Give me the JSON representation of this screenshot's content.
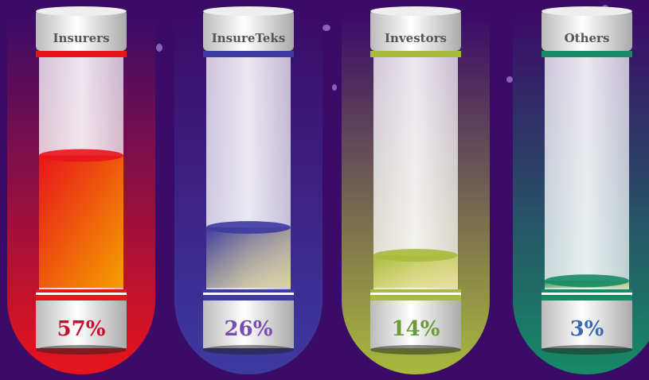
{
  "chart_data": {
    "type": "bar",
    "categories": [
      "Insurers",
      "InsureTeks",
      "Investors",
      "Others"
    ],
    "values": [
      57,
      26,
      14,
      3
    ],
    "value_labels": [
      "57%",
      "26%",
      "14%",
      "3%"
    ],
    "colors": [
      "#e8141b",
      "#3d3aa0",
      "#a9ba3c",
      "#178a66"
    ]
  }
}
